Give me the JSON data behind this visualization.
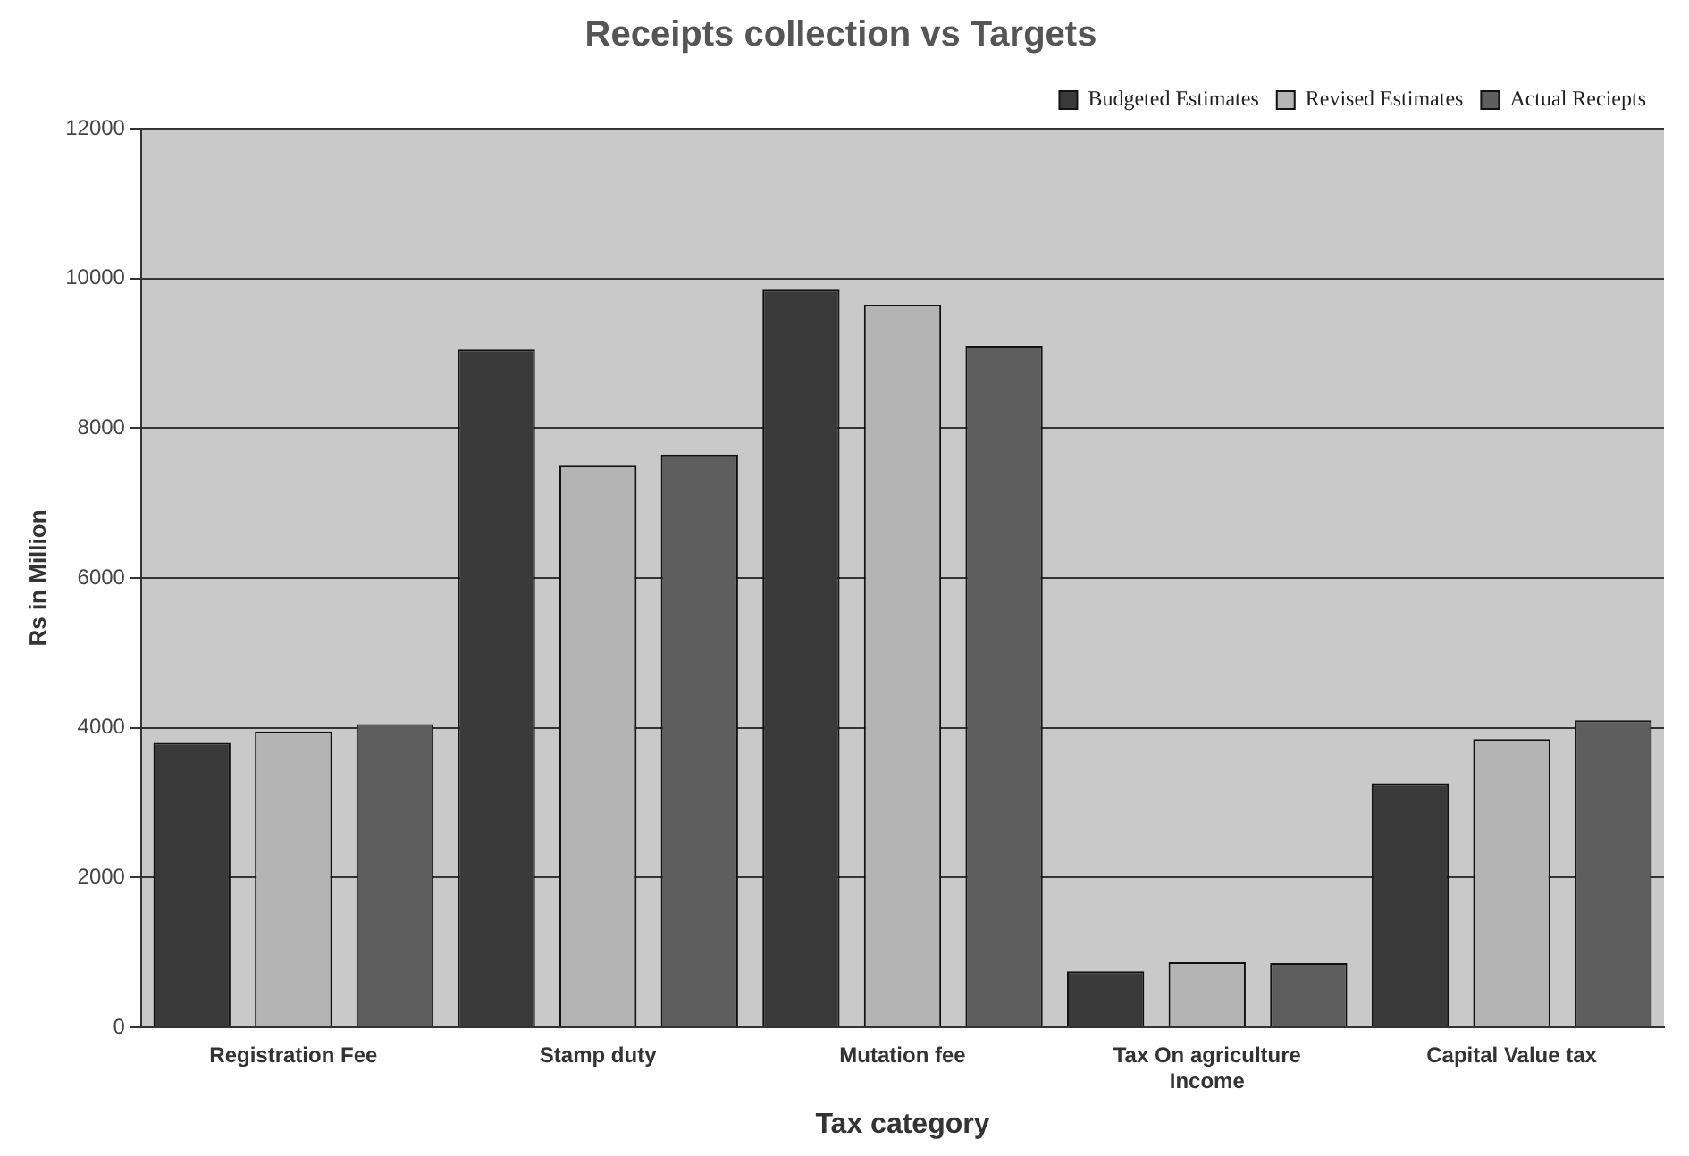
{
  "chart_data": {
    "type": "bar",
    "title": "Receipts collection vs Targets",
    "xlabel": "Tax category",
    "ylabel": "Rs in Million",
    "categories": [
      "Registration Fee",
      "Stamp duty",
      "Mutation fee",
      "Tax On agriculture Income",
      "Capital Value tax"
    ],
    "series": [
      {
        "name": "Budgeted Estimates",
        "color": "#3a3a3a",
        "values": [
          3800,
          9050,
          9850,
          750,
          3250
        ]
      },
      {
        "name": "Revised Estimates",
        "color": "#b4b4b4",
        "values": [
          3950,
          7500,
          9650,
          870,
          3850
        ]
      },
      {
        "name": "Actual Reciepts",
        "color": "#5e5e5e",
        "values": [
          4050,
          7650,
          9100,
          860,
          4100
        ]
      }
    ],
    "ylim": [
      0,
      12000
    ],
    "yticks": [
      0,
      2000,
      4000,
      6000,
      8000,
      10000,
      12000
    ],
    "grid": "y",
    "legend": "top right"
  }
}
